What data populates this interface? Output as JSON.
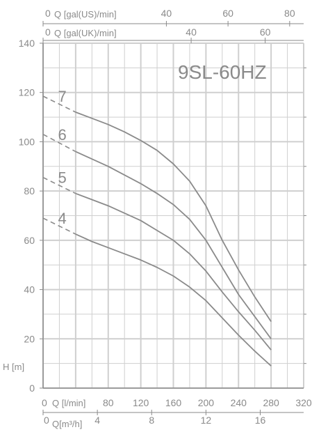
{
  "chart_data": {
    "type": "line",
    "title": "9SL-60HZ",
    "xlabel": "Q [l/min]",
    "ylabel": "H [m]",
    "xlim": [
      0,
      320
    ],
    "ylim": [
      0,
      140
    ],
    "x_ticks": [
      0,
      40,
      80,
      120,
      160,
      200,
      240,
      280,
      320
    ],
    "y_ticks": [
      0,
      20,
      40,
      60,
      80,
      100,
      120,
      140
    ],
    "x_tick_labels": [
      "0",
      "",
      "80",
      "120",
      "160",
      "200",
      "240",
      "280",
      "320"
    ],
    "y_tick_labels": [
      "0",
      "20",
      "40",
      "60",
      "80",
      "100",
      "120",
      "140"
    ],
    "secondary_axes": [
      {
        "label": "Q [gal(US)/min]",
        "position": "top",
        "ticks": [
          0,
          40,
          60,
          80
        ],
        "factor_l_per_min": 3.785
      },
      {
        "label": "Q [gal(UK)/min]",
        "position": "top-inner",
        "ticks": [
          0,
          40,
          60
        ],
        "factor_l_per_min": 4.546
      },
      {
        "label": "Q[m³/h]",
        "position": "bottom",
        "ticks": [
          0,
          4,
          8,
          12,
          16
        ],
        "factor_l_per_min": 16.667
      }
    ],
    "series": [
      {
        "name": "7",
        "dashed_x": [
          0,
          40
        ],
        "dashed_y": [
          118.5,
          112
        ],
        "x": [
          40,
          60,
          80,
          100,
          120,
          140,
          160,
          180,
          200,
          220,
          240,
          260,
          280
        ],
        "y": [
          112,
          109.5,
          107,
          104,
          100.5,
          96.5,
          91,
          84,
          74,
          60,
          48,
          37,
          27
        ]
      },
      {
        "name": "6",
        "dashed_x": [
          0,
          40
        ],
        "dashed_y": [
          103,
          96
        ],
        "x": [
          40,
          60,
          80,
          100,
          120,
          140,
          160,
          180,
          200,
          220,
          240,
          260,
          280
        ],
        "y": [
          96,
          93,
          90,
          86.5,
          83,
          79,
          74.5,
          68.5,
          60,
          49,
          38,
          29,
          20
        ]
      },
      {
        "name": "5",
        "dashed_x": [
          0,
          40
        ],
        "dashed_y": [
          85.5,
          79
        ],
        "x": [
          40,
          60,
          80,
          100,
          120,
          140,
          160,
          180,
          200,
          220,
          240,
          260,
          280
        ],
        "y": [
          79,
          76.5,
          74,
          71,
          68,
          64,
          60,
          54.5,
          47.5,
          39,
          31,
          23.5,
          15.5
        ]
      },
      {
        "name": "4",
        "dashed_x": [
          0,
          40
        ],
        "dashed_y": [
          69,
          62.5
        ],
        "x": [
          40,
          60,
          80,
          100,
          120,
          140,
          160,
          180,
          200,
          220,
          240,
          260,
          280
        ],
        "y": [
          62.5,
          59.5,
          57,
          54.5,
          52,
          49,
          45.5,
          41,
          35.5,
          28.5,
          21.5,
          15,
          9
        ]
      }
    ],
    "grid": true,
    "legend": "none"
  }
}
